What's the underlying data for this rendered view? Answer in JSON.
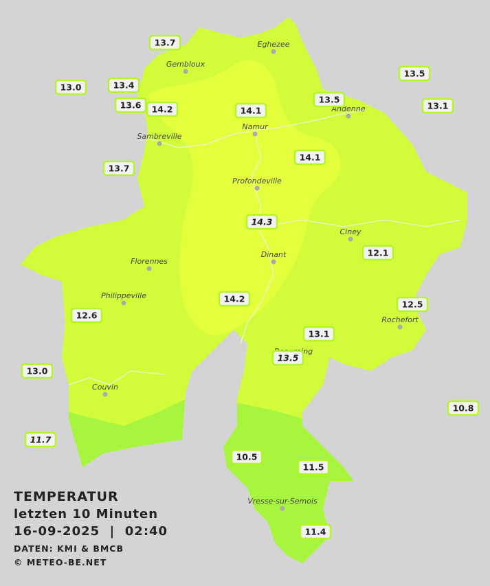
{
  "info": {
    "title": "TEMPERATUR",
    "period": "letzten 10 Minuten",
    "timestamp": "16-09-2025  |  02:40",
    "source": "DATEN: KMI & BMCB",
    "credit": "© METEO-BE.NET"
  },
  "cities": [
    "Eghezee",
    "Gembloux",
    "Andenne",
    "Namur",
    "Sambreville",
    "Profondeville",
    "Ciney",
    "Florennes",
    "Dinant",
    "Philippeville",
    "Rochefort",
    "Beauraing",
    "Couvin",
    "Vresse-sur-Semois"
  ],
  "stations": [
    {
      "label": "13.7"
    },
    {
      "label": "13.0"
    },
    {
      "label": "13.4"
    },
    {
      "label": "13.6"
    },
    {
      "label": "14.2"
    },
    {
      "label": "14.1"
    },
    {
      "label": "13.5"
    },
    {
      "label": "13.5"
    },
    {
      "label": "13.1"
    },
    {
      "label": "13.7"
    },
    {
      "label": "14.1"
    },
    {
      "label": "14.3",
      "italic": true
    },
    {
      "label": "12.1"
    },
    {
      "label": "12.5"
    },
    {
      "label": "12.6"
    },
    {
      "label": "14.2"
    },
    {
      "label": "13.1"
    },
    {
      "label": "13.5",
      "italic": true
    },
    {
      "label": "13.0"
    },
    {
      "label": "10.8"
    },
    {
      "label": "11.7",
      "italic": true
    },
    {
      "label": "10.5"
    },
    {
      "label": "11.5"
    },
    {
      "label": "11.4"
    }
  ]
}
